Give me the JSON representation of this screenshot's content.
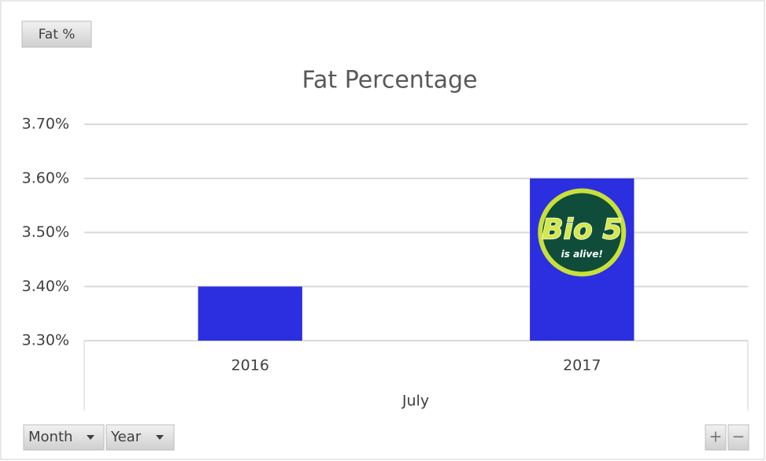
{
  "chart_data": {
    "type": "bar",
    "title": "Fat Percentage",
    "field_button": "Fat %",
    "axis_field_buttons": [
      "Month",
      "Year"
    ],
    "zoom_buttons": [
      "+",
      "−"
    ],
    "group_label": "July",
    "categories": [
      "2016",
      "2017"
    ],
    "values": [
      3.4,
      3.6
    ],
    "color": "#2b2fe0",
    "ylim": [
      3.3,
      3.7
    ],
    "yticks": [
      {
        "value": 3.3,
        "label": "3.30%"
      },
      {
        "value": 3.4,
        "label": "3.40%"
      },
      {
        "value": 3.5,
        "label": "3.50%"
      },
      {
        "value": 3.6,
        "label": "3.60%"
      },
      {
        "value": 3.7,
        "label": "3.70%"
      }
    ],
    "grid": true,
    "logo": {
      "title": "Bio 5",
      "tagline": "is alive!"
    }
  }
}
